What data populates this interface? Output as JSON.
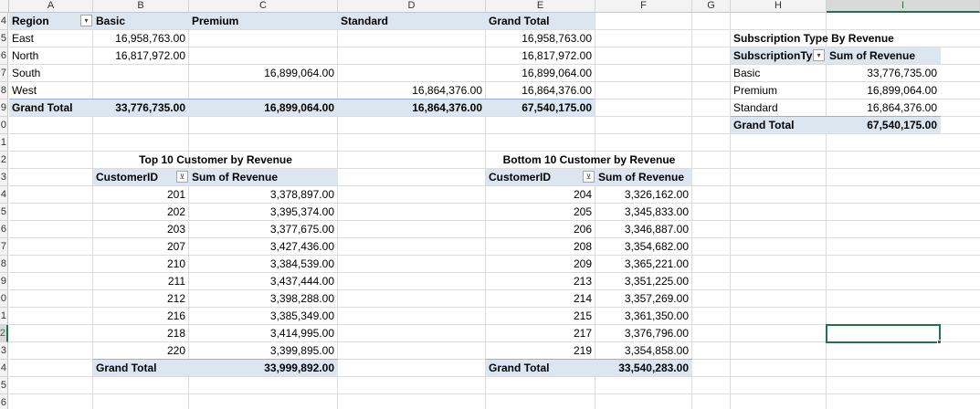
{
  "columns": [
    "A",
    "B",
    "C",
    "D",
    "E",
    "F",
    "G",
    "H",
    "I"
  ],
  "rows": [
    "4",
    "5",
    "6",
    "7",
    "8",
    "9",
    "0",
    "1",
    "2",
    "3",
    "4",
    "5",
    "6",
    "7",
    "8",
    "9",
    "0",
    "1",
    "2",
    "3",
    "4",
    "5",
    "6"
  ],
  "pivot_region": {
    "header": {
      "region": "Region",
      "basic": "Basic",
      "premium": "Premium",
      "standard": "Standard",
      "grand_total": "Grand Total"
    },
    "rows": [
      {
        "region": "East",
        "basic": "16,958,763.00",
        "premium": "",
        "standard": "",
        "total": "16,958,763.00"
      },
      {
        "region": "North",
        "basic": "16,817,972.00",
        "premium": "",
        "standard": "",
        "total": "16,817,972.00"
      },
      {
        "region": "South",
        "basic": "",
        "premium": "16,899,064.00",
        "standard": "",
        "total": "16,899,064.00"
      },
      {
        "region": "West",
        "basic": "",
        "premium": "",
        "standard": "16,864,376.00",
        "total": "16,864,376.00"
      }
    ],
    "grand": {
      "label": "Grand Total",
      "basic": "33,776,735.00",
      "premium": "16,899,064.00",
      "standard": "16,864,376.00",
      "total": "67,540,175.00"
    }
  },
  "pivot_subscription": {
    "title": "Subscription Type By Revenue",
    "col1": "SubscriptionTy",
    "col2": "Sum of Revenue",
    "rows": [
      {
        "type": "Basic",
        "value": "33,776,735.00"
      },
      {
        "type": "Premium",
        "value": "16,899,064.00"
      },
      {
        "type": "Standard",
        "value": "16,864,376.00"
      }
    ],
    "grand": {
      "label": "Grand Total",
      "value": "67,540,175.00"
    }
  },
  "top10": {
    "title": "Top 10 Customer by Revenue",
    "col1": "CustomerID",
    "col2": "Sum of Revenue",
    "rows": [
      {
        "id": "201",
        "value": "3,378,897.00"
      },
      {
        "id": "202",
        "value": "3,395,374.00"
      },
      {
        "id": "203",
        "value": "3,377,675.00"
      },
      {
        "id": "207",
        "value": "3,427,436.00"
      },
      {
        "id": "210",
        "value": "3,384,539.00"
      },
      {
        "id": "211",
        "value": "3,437,444.00"
      },
      {
        "id": "212",
        "value": "3,398,288.00"
      },
      {
        "id": "216",
        "value": "3,385,349.00"
      },
      {
        "id": "218",
        "value": "3,414,995.00"
      },
      {
        "id": "220",
        "value": "3,399,895.00"
      }
    ],
    "grand": {
      "label": "Grand Total",
      "value": "33,999,892.00"
    }
  },
  "bottom10": {
    "title": "Bottom 10 Customer by Revenue",
    "col1": "CustomerID",
    "col2": "Sum of Revenue",
    "rows": [
      {
        "id": "204",
        "value": "3,326,162.00"
      },
      {
        "id": "205",
        "value": "3,345,833.00"
      },
      {
        "id": "206",
        "value": "3,346,887.00"
      },
      {
        "id": "208",
        "value": "3,354,682.00"
      },
      {
        "id": "209",
        "value": "3,365,221.00"
      },
      {
        "id": "213",
        "value": "3,351,225.00"
      },
      {
        "id": "214",
        "value": "3,357,269.00"
      },
      {
        "id": "215",
        "value": "3,361,350.00"
      },
      {
        "id": "217",
        "value": "3,376,796.00"
      },
      {
        "id": "219",
        "value": "3,354,858.00"
      }
    ],
    "grand": {
      "label": "Grand Total",
      "value": "33,540,283.00"
    }
  },
  "icons": {
    "dropdown": "▾",
    "filter": "⊻"
  },
  "colors": {
    "band": "#dce6f1",
    "band_border": "#95b3d7",
    "selection": "#217346"
  }
}
